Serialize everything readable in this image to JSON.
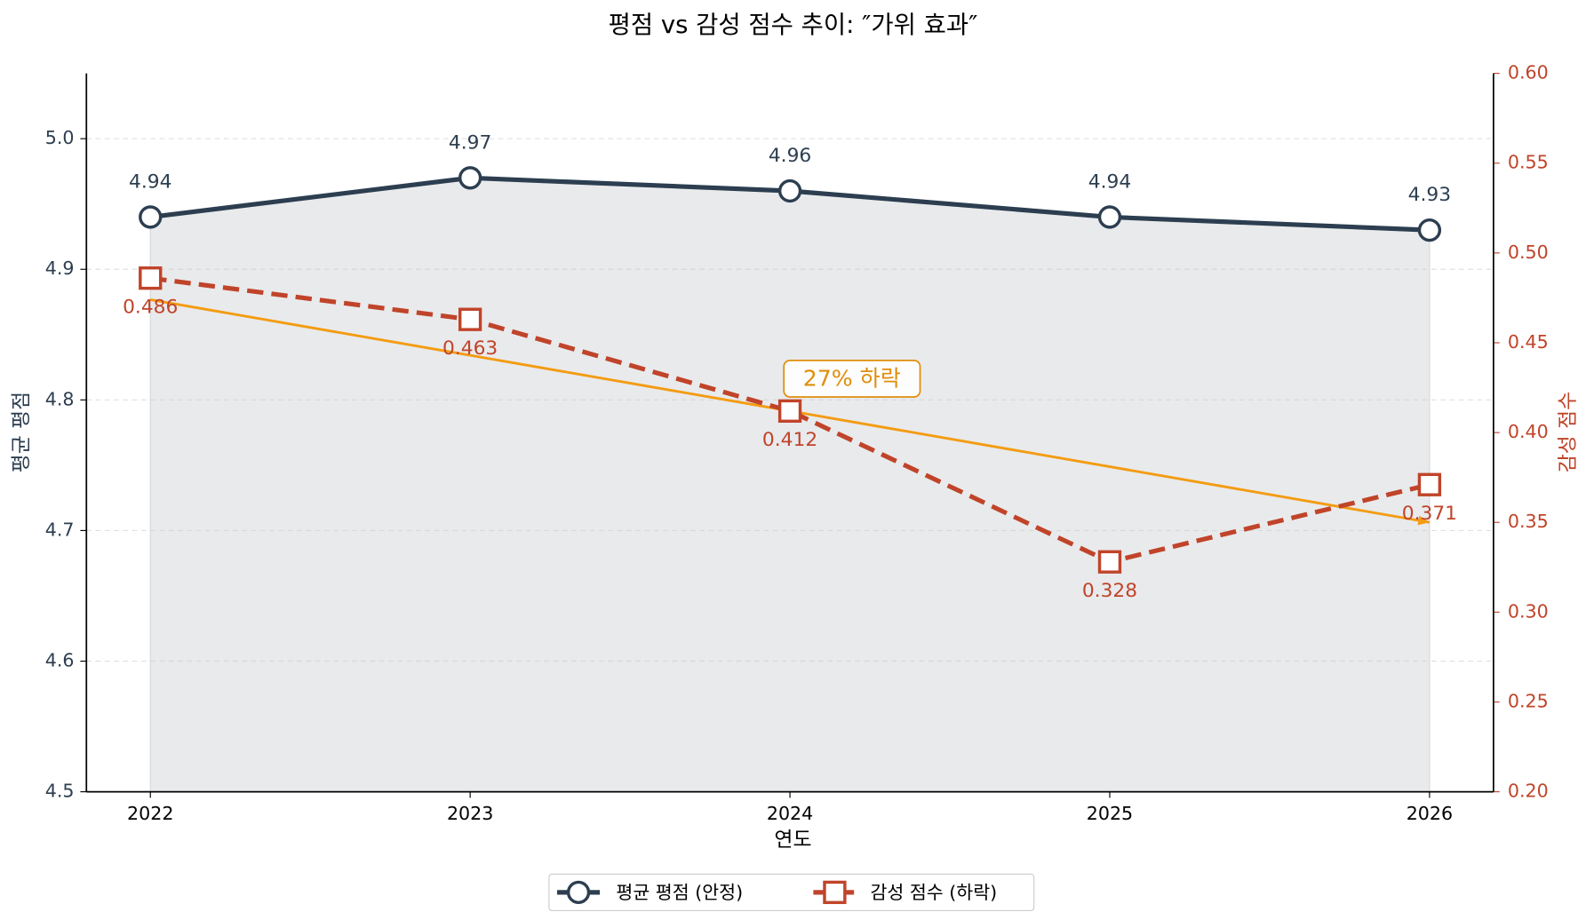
{
  "chart_data": {
    "type": "line",
    "title": "평점 vs 감성 점수 추이: ″가위 효과″",
    "x_label": "연도",
    "y_label": "평균 평점",
    "y2_label": "감성 점수",
    "x": [
      2022,
      2023,
      2024,
      2025,
      2026
    ],
    "xlim": [
      2021.8,
      2026.2
    ],
    "xticks": [
      2022,
      2023,
      2024,
      2025,
      2026
    ],
    "ylim": [
      4.5,
      5.05
    ],
    "yticks": [
      4.5,
      4.6,
      4.7,
      4.8,
      4.9,
      {
        "value": 5,
        "label": "5.0"
      }
    ],
    "y2lim": [
      0.2,
      0.6
    ],
    "y2ticks": [
      {
        "value": 0.2,
        "label": "0.20"
      },
      0.25,
      {
        "value": 0.3,
        "label": "0.30"
      },
      0.35,
      {
        "value": 0.4,
        "label": "0.40"
      },
      0.45,
      {
        "value": 0.5,
        "label": "0.50"
      },
      0.55,
      {
        "value": 0.6,
        "label": "0.60"
      }
    ],
    "grid": true,
    "series": [
      {
        "name": "평균 평점 (안정)",
        "color": "#2c3e50",
        "values": [
          4.94,
          4.97,
          4.96,
          4.94,
          4.93
        ],
        "marker": "circle",
        "fill": "#e9eaec"
      },
      {
        "name": "감성 점수 (하락)",
        "color": "#c0442a",
        "values": [
          0.486,
          0.463,
          0.412,
          0.328,
          0.371
        ],
        "axis": "y2",
        "marker": "square",
        "dashed": true
      }
    ],
    "trend": {
      "x": [
        2022,
        2026
      ],
      "values": [
        0.474,
        0.35
      ],
      "color": "#f39c12",
      "axis": "y2"
    },
    "annotation": {
      "text": "27% 하락",
      "x": 2024,
      "y": 0.43,
      "color": "#e08e0b"
    },
    "legend": "bottom"
  }
}
